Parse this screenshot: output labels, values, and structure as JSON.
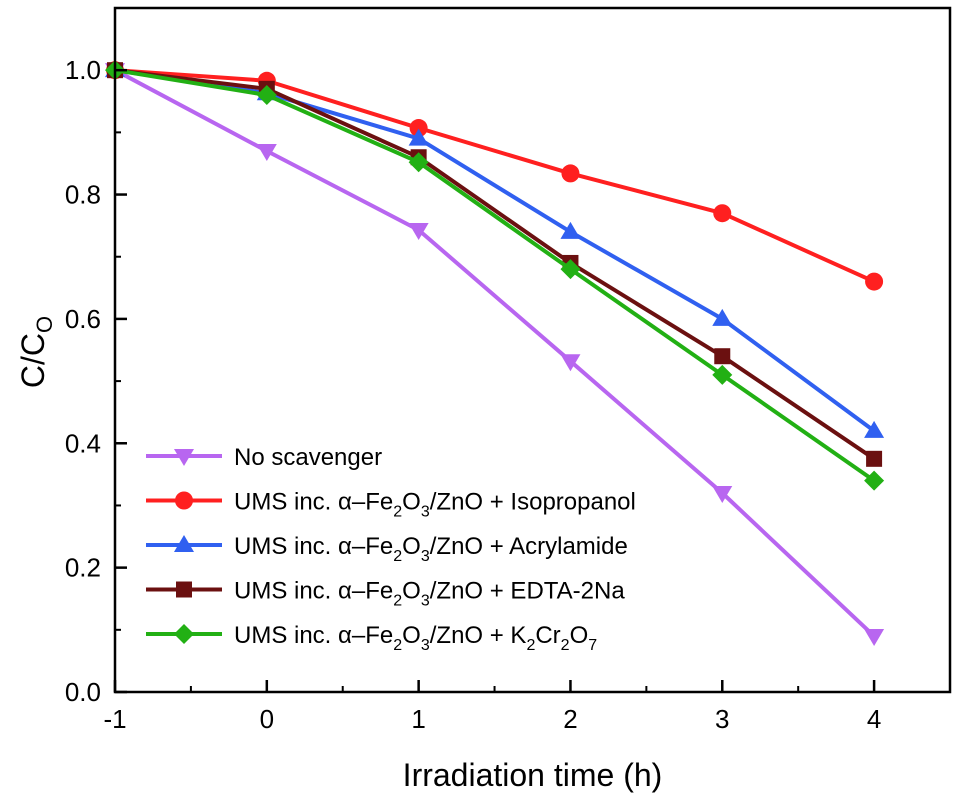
{
  "chart_data": {
    "type": "line",
    "xlabel": "Irradiation time (h)",
    "ylabel": {
      "main": "C/C",
      "sub": "O"
    },
    "xlim": [
      -1,
      4.5
    ],
    "ylim": [
      0,
      1.1
    ],
    "x_ticks": [
      "-1",
      "0",
      "1",
      "2",
      "3",
      "4"
    ],
    "y_ticks": [
      "0.0",
      "0.2",
      "0.4",
      "0.6",
      "0.8",
      "1.0"
    ],
    "x": [
      -1,
      0,
      1,
      2,
      3,
      4
    ],
    "grid": false,
    "legend_position": "bottom-left",
    "series": [
      {
        "name": "No scavenger",
        "legend_parts": [
          [
            "No scavenger",
            ""
          ]
        ],
        "color": "#b866f0",
        "marker": "triangle-down",
        "values": [
          1.0,
          0.87,
          0.743,
          0.532,
          0.32,
          0.09
        ]
      },
      {
        "name": "UMS inc. α–Fe2O3/ZnO + Isopropanol",
        "legend_parts": [
          [
            "UMS inc. α–Fe",
            ""
          ],
          [
            "2",
            "sub"
          ],
          [
            "O",
            ""
          ],
          [
            "3",
            "sub"
          ],
          [
            "/ZnO + Isopropanol",
            ""
          ]
        ],
        "color": "#ff2020",
        "marker": "circle",
        "values": [
          1.0,
          0.983,
          0.907,
          0.834,
          0.77,
          0.66
        ]
      },
      {
        "name": "UMS inc. α–Fe2O3/ZnO + Acrylamide",
        "legend_parts": [
          [
            "UMS inc. α–Fe",
            ""
          ],
          [
            "2",
            "sub"
          ],
          [
            "O",
            ""
          ],
          [
            "3",
            "sub"
          ],
          [
            "/ZnO + Acrylamide",
            ""
          ]
        ],
        "color": "#3060f0",
        "marker": "triangle-up",
        "values": [
          1.0,
          0.963,
          0.89,
          0.74,
          0.6,
          0.42
        ]
      },
      {
        "name": "UMS inc. α–Fe2O3/ZnO + EDTA-2Na",
        "legend_parts": [
          [
            "UMS inc. α–Fe",
            ""
          ],
          [
            "2",
            "sub"
          ],
          [
            "O",
            ""
          ],
          [
            "3",
            "sub"
          ],
          [
            "/ZnO + EDTA-2Na",
            ""
          ]
        ],
        "color": "#6b1010",
        "marker": "square",
        "values": [
          1.0,
          0.97,
          0.86,
          0.69,
          0.54,
          0.375
        ]
      },
      {
        "name": "UMS inc. α–Fe2O3/ZnO + K2Cr2O7",
        "legend_parts": [
          [
            "UMS inc. α–Fe",
            ""
          ],
          [
            "2",
            "sub"
          ],
          [
            "O",
            ""
          ],
          [
            "3",
            "sub"
          ],
          [
            "/ZnO + K",
            ""
          ],
          [
            "2",
            "sub"
          ],
          [
            "Cr",
            ""
          ],
          [
            "2",
            "sub"
          ],
          [
            "O",
            ""
          ],
          [
            "7",
            "sub"
          ]
        ],
        "color": "#22b014",
        "marker": "diamond",
        "values": [
          1.0,
          0.96,
          0.852,
          0.68,
          0.51,
          0.34
        ]
      }
    ]
  }
}
